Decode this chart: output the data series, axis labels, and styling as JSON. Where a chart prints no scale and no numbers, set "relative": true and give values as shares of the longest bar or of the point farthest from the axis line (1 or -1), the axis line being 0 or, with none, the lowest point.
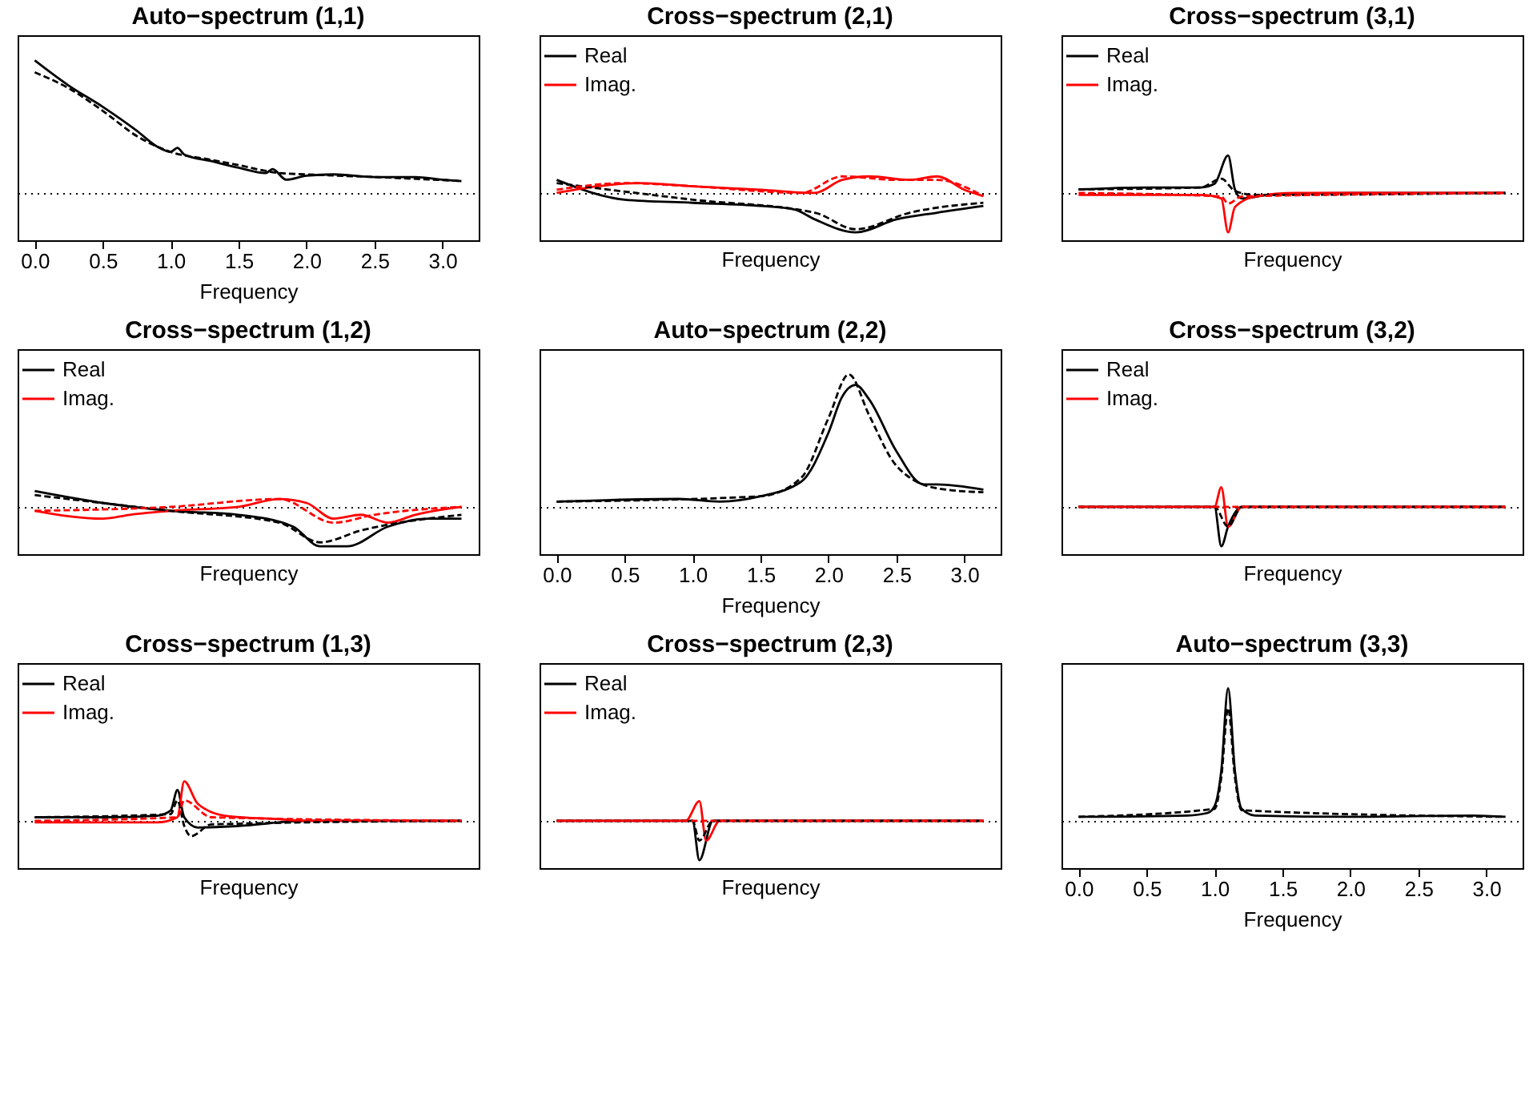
{
  "chart_data": [
    {
      "type": "line",
      "title": "Auto−spectrum (1,1)",
      "xlabel": "Frequency",
      "relative": true,
      "xlim": [
        -0.126,
        3.267
      ],
      "xticks": [
        {
          "value": 0,
          "label": "0.0"
        },
        0.5,
        {
          "value": 1,
          "label": "1.0"
        },
        1.5,
        {
          "value": 2,
          "label": "2.0"
        },
        2.5,
        {
          "value": 3,
          "label": "3.0"
        }
      ],
      "tick_labels": "x",
      "ref_lines": [
        {
          "axis": "y",
          "value": 0,
          "line_style": "dotted",
          "color": "#000000"
        }
      ],
      "series": [
        {
          "color": "#000000",
          "line_style": "solid",
          "x": [
            0,
            0.25,
            0.5,
            0.75,
            0.9,
            1.0,
            1.05,
            1.1,
            1.3,
            1.5,
            1.7,
            1.75,
            1.85,
            2.0,
            2.2,
            2.5,
            2.8,
            3.0,
            3.14
          ],
          "values": [
            1,
            0.81,
            0.65,
            0.47,
            0.35,
            0.31,
            0.34,
            0.29,
            0.24,
            0.19,
            0.15,
            0.18,
            0.1,
            0.13,
            0.14,
            0.12,
            0.12,
            0.1,
            0.09
          ]
        },
        {
          "color": "#000000",
          "line_style": "dashed",
          "x": [
            0,
            0.25,
            0.5,
            0.75,
            1.0,
            1.3,
            1.5,
            1.8,
            2.0,
            2.5,
            3.14
          ],
          "values": [
            0.91,
            0.79,
            0.62,
            0.43,
            0.31,
            0.25,
            0.21,
            0.15,
            0.14,
            0.12,
            0.09
          ]
        }
      ]
    },
    {
      "type": "line",
      "title": "Cross−spectrum (2,1)",
      "xlabel": "Frequency",
      "relative": true,
      "xlim": [
        -0.126,
        3.267
      ],
      "tick_labels": false,
      "legend": "top left",
      "ref_lines": [
        {
          "axis": "y",
          "value": 0,
          "line_style": "dotted",
          "color": "#000000"
        }
      ],
      "series": [
        {
          "name": "Real",
          "color": "#000000",
          "line_style": "solid",
          "x": [
            0,
            0.5,
            1.0,
            1.5,
            1.75,
            1.9,
            2.2,
            2.5,
            2.8,
            3.14
          ],
          "values": [
            0.33,
            -0.17,
            -0.25,
            -0.33,
            -0.42,
            -0.67,
            -1,
            -0.67,
            -0.5,
            -0.33
          ]
        },
        {
          "name": "Imag.",
          "color": "#ff0000",
          "line_style": "solid",
          "x": [
            0,
            0.3,
            0.6,
            1.0,
            1.5,
            1.9,
            2.1,
            2.3,
            2.6,
            2.8,
            3.0,
            3.14
          ],
          "values": [
            0,
            0.17,
            0.25,
            0.17,
            0.08,
            0,
            0.33,
            0.42,
            0.33,
            0.42,
            0.08,
            -0.08
          ]
        },
        {
          "color": "#000000",
          "line_style": "dashed",
          "x": [
            0,
            1.0,
            1.9,
            2.2,
            2.6,
            3.14
          ],
          "values": [
            0.25,
            -0.17,
            -0.5,
            -0.92,
            -0.5,
            -0.25
          ]
        },
        {
          "color": "#ff0000",
          "line_style": "dashed",
          "x": [
            0,
            0.5,
            1.0,
            1.8,
            2.1,
            2.5,
            2.8,
            3.14
          ],
          "values": [
            0.08,
            0.25,
            0.17,
            0,
            0.42,
            0.33,
            0.33,
            -0.08
          ]
        }
      ]
    },
    {
      "type": "line",
      "title": "Cross−spectrum (3,1)",
      "xlabel": "Frequency",
      "relative": true,
      "xlim": [
        -0.126,
        3.267
      ],
      "tick_labels": false,
      "legend": "top left",
      "ref_lines": [
        {
          "axis": "y",
          "value": 0,
          "line_style": "dotted",
          "color": "#000000"
        }
      ],
      "series": [
        {
          "name": "Real",
          "color": "#000000",
          "line_style": "solid",
          "x": [
            0,
            0.5,
            0.9,
            1.0,
            1.1,
            1.15,
            1.2,
            1.4,
            2.0,
            3.14
          ],
          "values": [
            0.09,
            0.14,
            0.14,
            0.23,
            0.95,
            0.09,
            -0.14,
            -0.05,
            0,
            0
          ]
        },
        {
          "name": "Imag.",
          "color": "#ff0000",
          "line_style": "solid",
          "x": [
            0,
            0.9,
            1.05,
            1.1,
            1.15,
            1.3,
            1.6,
            3.14
          ],
          "values": [
            -0.05,
            -0.05,
            -0.14,
            -1,
            -0.36,
            -0.09,
            0,
            0
          ]
        },
        {
          "color": "#000000",
          "line_style": "dashed",
          "x": [
            0,
            0.9,
            1.05,
            1.15,
            1.3,
            3.14
          ],
          "values": [
            0.09,
            0.14,
            0.36,
            0.05,
            -0.05,
            0
          ]
        },
        {
          "color": "#ff0000",
          "line_style": "dashed",
          "x": [
            0,
            1.05,
            1.1,
            1.2,
            3.14
          ],
          "values": [
            0,
            -0.09,
            -0.27,
            -0.09,
            0
          ]
        }
      ]
    },
    {
      "type": "line",
      "title": "Cross−spectrum (1,2)",
      "xlabel": "Frequency",
      "relative": true,
      "xlim": [
        -0.126,
        3.267
      ],
      "tick_labels": false,
      "legend": "top left",
      "ref_lines": [
        {
          "axis": "y",
          "value": 0,
          "line_style": "dotted",
          "color": "#000000"
        }
      ],
      "series": [
        {
          "name": "Real",
          "color": "#000000",
          "line_style": "solid",
          "x": [
            0,
            0.5,
            1.0,
            1.5,
            1.9,
            2.1,
            2.3,
            2.6,
            2.9,
            3.14
          ],
          "values": [
            0.4,
            0.1,
            -0.1,
            -0.2,
            -0.5,
            -1,
            -1,
            -0.5,
            -0.3,
            -0.3
          ]
        },
        {
          "name": "Imag.",
          "color": "#ff0000",
          "line_style": "solid",
          "x": [
            0,
            0.5,
            0.7,
            1.0,
            1.5,
            1.8,
            2.0,
            2.2,
            2.4,
            2.6,
            2.8,
            3.14
          ],
          "values": [
            -0.1,
            -0.3,
            -0.2,
            -0.1,
            0,
            0.2,
            0.1,
            -0.3,
            -0.2,
            -0.4,
            -0.2,
            0
          ]
        },
        {
          "color": "#000000",
          "line_style": "dashed",
          "x": [
            0,
            1.0,
            1.8,
            2.1,
            2.4,
            3.14
          ],
          "values": [
            0.3,
            -0.1,
            -0.4,
            -0.9,
            -0.6,
            -0.2
          ]
        },
        {
          "color": "#ff0000",
          "line_style": "dashed",
          "x": [
            0,
            1.0,
            1.8,
            2.2,
            2.5,
            3.14
          ],
          "values": [
            -0.1,
            0,
            0.2,
            -0.4,
            -0.2,
            0
          ]
        }
      ]
    },
    {
      "type": "line",
      "title": "Auto−spectrum (2,2)",
      "xlabel": "Frequency",
      "relative": true,
      "xlim": [
        -0.126,
        3.267
      ],
      "xticks": [
        {
          "value": 0,
          "label": "0.0"
        },
        0.5,
        {
          "value": 1,
          "label": "1.0"
        },
        1.5,
        {
          "value": 2,
          "label": "2.0"
        },
        2.5,
        {
          "value": 3,
          "label": "3.0"
        }
      ],
      "tick_labels": "x",
      "ref_lines": [
        {
          "axis": "y",
          "value": 0,
          "line_style": "dotted",
          "color": "#000000"
        }
      ],
      "series": [
        {
          "color": "#000000",
          "line_style": "solid",
          "x": [
            0,
            0.9,
            1.2,
            1.5,
            1.8,
            2.0,
            2.1,
            2.2,
            2.3,
            2.5,
            2.7,
            2.8,
            3.14
          ],
          "values": [
            0.04,
            0.06,
            0.04,
            0.08,
            0.19,
            0.56,
            0.83,
            0.92,
            0.81,
            0.42,
            0.17,
            0.17,
            0.13
          ]
        },
        {
          "color": "#000000",
          "line_style": "dashed",
          "x": [
            0,
            1.5,
            1.8,
            2.0,
            2.15,
            2.3,
            2.5,
            2.8,
            3.14
          ],
          "values": [
            0.04,
            0.08,
            0.22,
            0.67,
            1,
            0.69,
            0.31,
            0.14,
            0.11
          ]
        }
      ]
    },
    {
      "type": "line",
      "title": "Cross−spectrum (3,2)",
      "xlabel": "Frequency",
      "relative": true,
      "xlim": [
        -0.126,
        3.267
      ],
      "tick_labels": false,
      "legend": "top left",
      "ref_lines": [
        {
          "axis": "y",
          "value": 0,
          "line_style": "dotted",
          "color": "#000000"
        }
      ],
      "series": [
        {
          "name": "Real",
          "color": "#000000",
          "line_style": "solid",
          "x": [
            0,
            1.0,
            1.05,
            1.1,
            1.2,
            3.14
          ],
          "values": [
            0,
            0,
            -1,
            -0.5,
            0,
            0
          ]
        },
        {
          "name": "Imag.",
          "color": "#ff0000",
          "line_style": "solid",
          "x": [
            0,
            1.0,
            1.05,
            1.1,
            1.2,
            3.14
          ],
          "values": [
            0,
            0,
            0.5,
            -0.5,
            0,
            0
          ]
        },
        {
          "color": "#000000",
          "line_style": "dashed",
          "x": [
            0,
            1.0,
            1.1,
            1.2,
            3.14
          ],
          "values": [
            0,
            0,
            -0.5,
            0,
            0
          ]
        },
        {
          "color": "#ff0000",
          "line_style": "dashed",
          "x": [
            0,
            3.14
          ],
          "values": [
            0,
            0
          ]
        }
      ]
    },
    {
      "type": "line",
      "title": "Cross−spectrum (1,3)",
      "xlabel": "Frequency",
      "relative": true,
      "xlim": [
        -0.126,
        3.267
      ],
      "tick_labels": false,
      "legend": "top left",
      "ref_lines": [
        {
          "axis": "y",
          "value": 0,
          "line_style": "dotted",
          "color": "#000000"
        }
      ],
      "series": [
        {
          "name": "Real",
          "color": "#000000",
          "line_style": "solid",
          "x": [
            0,
            0.5,
            0.9,
            1.0,
            1.05,
            1.1,
            1.2,
            1.5,
            2.0,
            3.14
          ],
          "values": [
            0.09,
            0.09,
            0.13,
            0.26,
            0.78,
            0.09,
            -0.17,
            -0.13,
            0,
            0
          ]
        },
        {
          "name": "Imag.",
          "color": "#ff0000",
          "line_style": "solid",
          "x": [
            0,
            0.9,
            1.05,
            1.1,
            1.2,
            1.4,
            1.8,
            2.0,
            3.14
          ],
          "values": [
            -0.04,
            -0.04,
            0.09,
            1,
            0.43,
            0.13,
            0.04,
            0,
            0
          ]
        },
        {
          "color": "#000000",
          "line_style": "dashed",
          "x": [
            0,
            1.0,
            1.05,
            1.1,
            1.15,
            1.3,
            3.14
          ],
          "values": [
            0.09,
            0.17,
            0.52,
            -0.13,
            -0.39,
            -0.09,
            0
          ]
        },
        {
          "color": "#ff0000",
          "line_style": "dashed",
          "x": [
            0,
            1.05,
            1.1,
            1.3,
            3.14
          ],
          "values": [
            0,
            0.09,
            0.52,
            0.09,
            0
          ]
        }
      ]
    },
    {
      "type": "line",
      "title": "Cross−spectrum (2,3)",
      "xlabel": "Frequency",
      "relative": true,
      "xlim": [
        -0.126,
        3.267
      ],
      "tick_labels": false,
      "legend": "top left",
      "ref_lines": [
        {
          "axis": "y",
          "value": 0,
          "line_style": "dotted",
          "color": "#000000"
        }
      ],
      "series": [
        {
          "name": "Real",
          "color": "#000000",
          "line_style": "solid",
          "x": [
            0,
            1.0,
            1.05,
            1.15,
            3.14
          ],
          "values": [
            0,
            0,
            -1,
            0,
            0
          ]
        },
        {
          "name": "Imag.",
          "color": "#ff0000",
          "line_style": "solid",
          "x": [
            0,
            0.95,
            1.05,
            1.1,
            1.2,
            3.14
          ],
          "values": [
            0,
            0,
            0.5,
            -0.5,
            0,
            0
          ]
        },
        {
          "color": "#000000",
          "line_style": "dashed",
          "x": [
            0,
            1.0,
            1.05,
            1.15,
            3.14
          ],
          "values": [
            0,
            0,
            -0.5,
            0,
            0
          ]
        },
        {
          "color": "#ff0000",
          "line_style": "dashed",
          "x": [
            0,
            3.14
          ],
          "values": [
            0,
            0
          ]
        }
      ]
    },
    {
      "type": "line",
      "title": "Auto−spectrum (3,3)",
      "xlabel": "Frequency",
      "relative": true,
      "xlim": [
        -0.126,
        3.267
      ],
      "xticks": [
        {
          "value": 0,
          "label": "0.0"
        },
        0.5,
        {
          "value": 1,
          "label": "1.0"
        },
        1.5,
        {
          "value": 2,
          "label": "2.0"
        },
        2.5,
        {
          "value": 3,
          "label": "3.0"
        }
      ],
      "tick_labels": "x",
      "ref_lines": [
        {
          "axis": "y",
          "value": 0,
          "line_style": "dotted",
          "color": "#000000"
        }
      ],
      "series": [
        {
          "color": "#000000",
          "line_style": "solid",
          "x": [
            0,
            0.8,
            0.95,
            1.0,
            1.05,
            1.1,
            1.15,
            1.2,
            1.3,
            2.0,
            2.9,
            3.14
          ],
          "values": [
            0.03,
            0.04,
            0.06,
            0.11,
            0.38,
            1,
            0.38,
            0.09,
            0.04,
            0.03,
            0.04,
            0.03
          ]
        },
        {
          "color": "#000000",
          "line_style": "dashed",
          "x": [
            0,
            1.0,
            1.05,
            1.1,
            1.15,
            1.2,
            3.14
          ],
          "values": [
            0.03,
            0.09,
            0.33,
            0.85,
            0.33,
            0.08,
            0.03
          ]
        }
      ]
    }
  ]
}
